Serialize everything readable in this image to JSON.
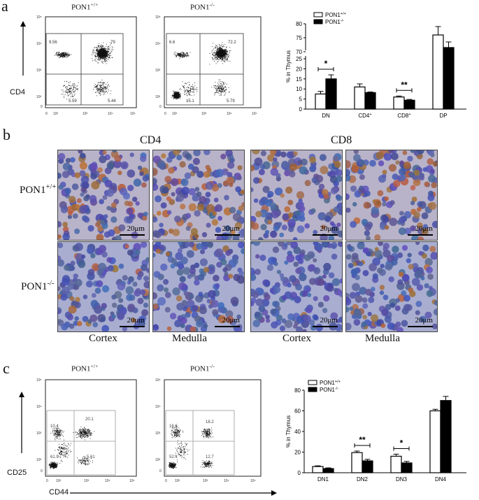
{
  "panel_a": {
    "letter": "a",
    "flow_titles": [
      "PON1+/+",
      "PON1-/-"
    ],
    "y_axis_label": "CD4",
    "plots": [
      {
        "ul": "9.56",
        "ur": "79",
        "ll": "5.59",
        "lr": "5.44"
      },
      {
        "ul": "6.6",
        "ur": "72.2",
        "ll": "15.1",
        "lr": "5.79"
      }
    ]
  },
  "panel_b": {
    "letter": "b",
    "col_headers": [
      "CD4",
      "CD8"
    ],
    "row_labels": [
      "PON1+/+",
      "PON1-/-"
    ],
    "scale": "20μm",
    "footers": [
      "Cortex",
      "Medulla",
      "Cortex",
      "Medulla"
    ]
  },
  "panel_c": {
    "letter": "c",
    "flow_titles": [
      "PON1+/+",
      "PON1-/-"
    ],
    "y_axis_label": "CD25",
    "x_axis_label": "CD44",
    "plots": [
      {
        "ul": "10.4",
        "ur": "20.1",
        "ll": "61.9",
        "lr": "5.61"
      },
      {
        "ul": "16.6",
        "ur": "18.2",
        "ll": "52.4",
        "lr": "12.7"
      }
    ]
  },
  "chart_data": [
    {
      "type": "bar",
      "ylabel": "% in Thymus",
      "categories": [
        "DN",
        "CD4+",
        "CD8+",
        "DP"
      ],
      "series": [
        {
          "name": "PON1+/+",
          "values": [
            7.5,
            11,
            6,
            76
          ],
          "errors": [
            1.3,
            1.5,
            0.5,
            3
          ]
        },
        {
          "name": "PON1-/-",
          "values": [
            15,
            8.2,
            4.4,
            71.5
          ],
          "errors": [
            2,
            0.3,
            0.4,
            2
          ]
        }
      ],
      "yticks": [
        "0",
        "5",
        "10",
        "15",
        "20",
        "25",
        "70",
        "75",
        "80"
      ],
      "broken_axis": [
        [
          0,
          25
        ],
        [
          70,
          80
        ]
      ],
      "significance": [
        {
          "category": "DN",
          "label": "*"
        },
        {
          "category": "CD8+",
          "label": "**"
        }
      ],
      "legend_position": "top-left"
    },
    {
      "type": "bar",
      "ylabel": "% in Thymus",
      "categories": [
        "DN1",
        "DN2",
        "DN3",
        "DN4"
      ],
      "series": [
        {
          "name": "PON1+/+",
          "values": [
            6,
            19.5,
            16,
            60
          ],
          "errors": [
            0.7,
            1.5,
            2,
            1.5
          ]
        },
        {
          "name": "PON1-/-",
          "values": [
            4,
            11.5,
            9.5,
            70
          ],
          "errors": [
            0.7,
            1.5,
            1.5,
            4
          ]
        }
      ],
      "ylim": [
        0,
        80
      ],
      "yticks": [
        "0",
        "20",
        "40",
        "60",
        "80"
      ],
      "significance": [
        {
          "category": "DN2",
          "label": "**"
        },
        {
          "category": "DN3",
          "label": "*"
        }
      ],
      "legend_position": "top-left"
    }
  ]
}
